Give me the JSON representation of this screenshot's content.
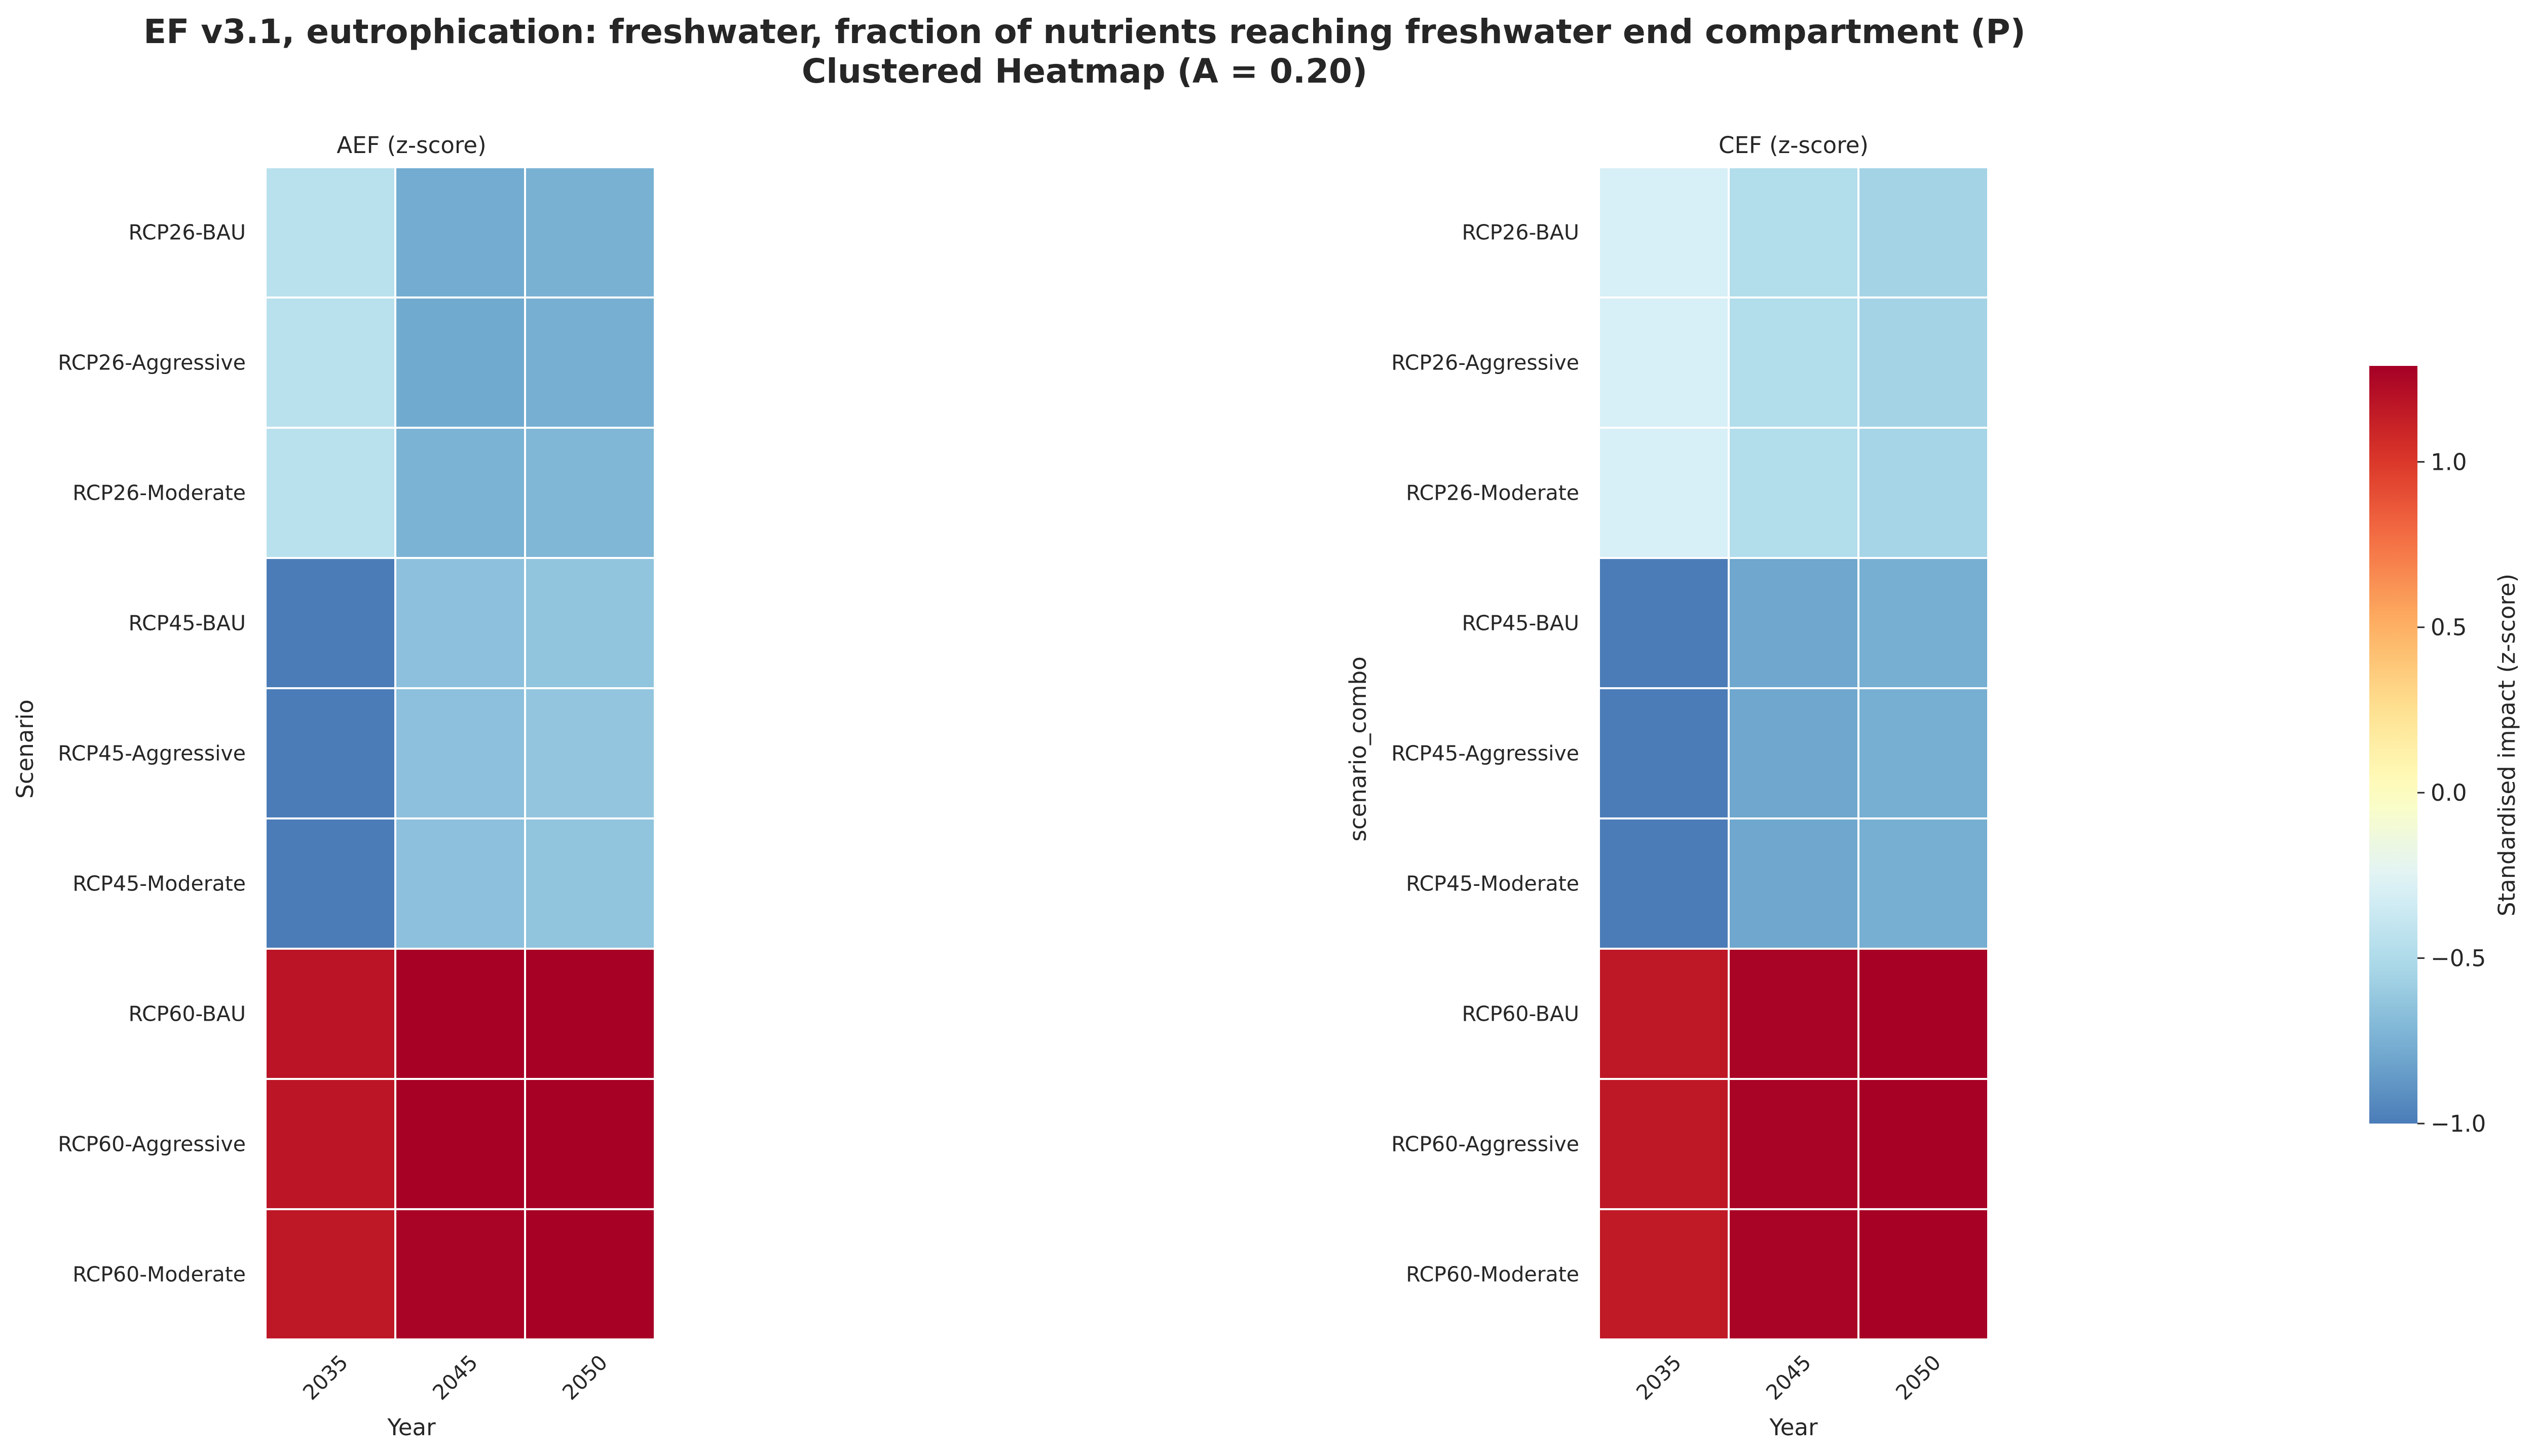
{
  "figure": {
    "title_line1": "EF v3.1, eutrophication: freshwater, fraction of nutrients reaching freshwater end compartment (P)",
    "title_line2": "Clustered Heatmap (A = 0.20)"
  },
  "chart_data": [
    {
      "type": "heatmap",
      "title": "AEF (z-score)",
      "xlabel": "Year",
      "ylabel": "Scenario",
      "x": [
        "2035",
        "2045",
        "2050"
      ],
      "y": [
        "RCP26-BAU",
        "RCP26-Aggressive",
        "RCP26-Moderate",
        "RCP45-BAU",
        "RCP45-Aggressive",
        "RCP45-Moderate",
        "RCP60-BAU",
        "RCP60-Aggressive",
        "RCP60-Moderate"
      ],
      "values": [
        [
          -0.45,
          -0.78,
          -0.75
        ],
        [
          -0.45,
          -0.79,
          -0.76
        ],
        [
          -0.45,
          -0.74,
          -0.72
        ],
        [
          -1.0,
          -0.66,
          -0.64
        ],
        [
          -1.0,
          -0.66,
          -0.63
        ],
        [
          -1.0,
          -0.66,
          -0.64
        ],
        [
          1.18,
          1.28,
          1.28
        ],
        [
          1.17,
          1.28,
          1.28
        ],
        [
          1.16,
          1.27,
          1.28
        ]
      ]
    },
    {
      "type": "heatmap",
      "title": "CEF (z-score)",
      "xlabel": "Year",
      "ylabel": "scenario_combo",
      "x": [
        "2035",
        "2045",
        "2050"
      ],
      "y": [
        "RCP26-BAU",
        "RCP26-Aggressive",
        "RCP26-Moderate",
        "RCP45-BAU",
        "RCP45-Aggressive",
        "RCP45-Moderate",
        "RCP60-BAU",
        "RCP60-Aggressive",
        "RCP60-Moderate"
      ],
      "values": [
        [
          -0.3,
          -0.48,
          -0.55
        ],
        [
          -0.3,
          -0.48,
          -0.55
        ],
        [
          -0.3,
          -0.48,
          -0.54
        ],
        [
          -1.0,
          -0.8,
          -0.76
        ],
        [
          -1.0,
          -0.8,
          -0.76
        ],
        [
          -1.0,
          -0.8,
          -0.76
        ],
        [
          1.16,
          1.27,
          1.28
        ],
        [
          1.16,
          1.27,
          1.28
        ],
        [
          1.15,
          1.27,
          1.28
        ]
      ]
    }
  ],
  "colorbar": {
    "label": "Standardised impact (z-score)",
    "vmin": -1.0,
    "vmax": 1.29,
    "ticks": [
      "1.0",
      "0.5",
      "0.0",
      "−0.5",
      "−1.0"
    ],
    "tick_values": [
      1.0,
      0.5,
      0.0,
      -0.5,
      -1.0
    ],
    "colormap": "RdYlBu_r"
  }
}
